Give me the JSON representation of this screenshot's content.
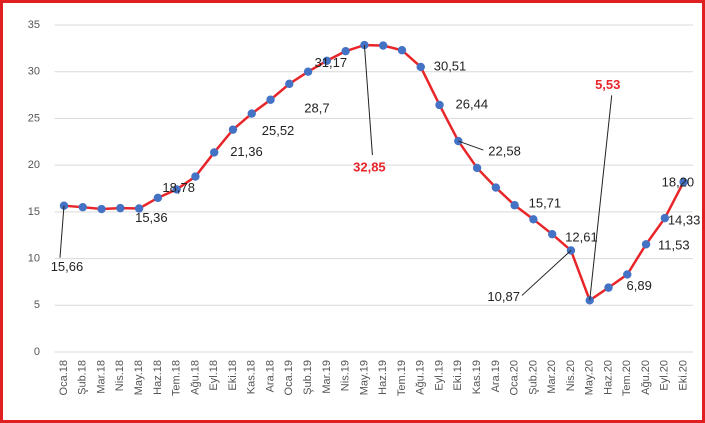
{
  "chart_data": {
    "type": "line",
    "categories": [
      "Oca.18",
      "Şub.18",
      "Mar.18",
      "Nis.18",
      "May.18",
      "Haz.18",
      "Tem.18",
      "Ağu.18",
      "Eyl.18",
      "Eki.18",
      "Kas.18",
      "Ara.18",
      "Oca.19",
      "Şub.19",
      "Mar.19",
      "Nis.19",
      "May.19",
      "Haz.19",
      "Tem.19",
      "Ağu.19",
      "Eyl.19",
      "Eki.19",
      "Kas.19",
      "Ara.19",
      "Oca.20",
      "Şub.20",
      "Mar.20",
      "Nis.20",
      "May.20",
      "Haz.20",
      "Tem.20",
      "Ağu.20",
      "Eyl.20",
      "Eki.20"
    ],
    "series": [
      {
        "color": "#e8262a",
        "marker_color": "#4472c4",
        "values": [
          15.66,
          15.5,
          15.3,
          15.4,
          15.36,
          16.5,
          17.4,
          18.78,
          21.36,
          23.8,
          25.52,
          27.0,
          28.7,
          30.0,
          31.17,
          32.2,
          32.85,
          32.8,
          32.3,
          30.51,
          26.44,
          22.58,
          19.7,
          17.6,
          15.71,
          14.2,
          12.61,
          10.87,
          5.53,
          6.89,
          8.3,
          11.53,
          14.33,
          18.2
        ],
        "value_labels": [
          "15,66",
          null,
          null,
          null,
          "15,36",
          null,
          null,
          "18,78",
          "21,36",
          null,
          "25,52",
          null,
          "28,7",
          null,
          "31,17",
          null,
          "32,85",
          null,
          null,
          "30,51",
          "26,44",
          "22,58",
          null,
          null,
          "15,71",
          null,
          "12,61",
          "10,87",
          "5,53",
          "6,89",
          null,
          "11,53",
          "14,33",
          "18,20"
        ]
      }
    ],
    "highlight_indices": [
      16,
      28
    ],
    "highlight_color": "#e8262a",
    "ylim": [
      0,
      35
    ],
    "yticks": [
      0,
      5,
      10,
      15,
      20,
      25,
      30,
      35
    ],
    "grid": true
  }
}
